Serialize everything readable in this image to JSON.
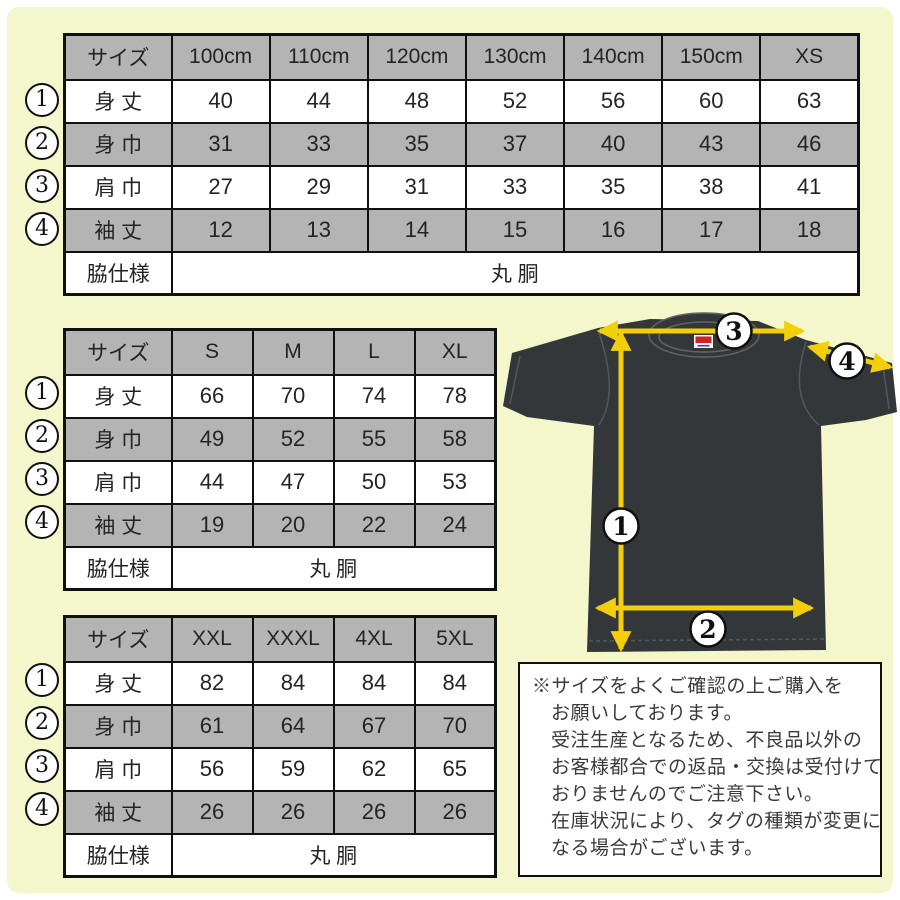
{
  "colors": {
    "background": "#f4f6cb",
    "table_shade": "#b4b4b4",
    "arrow_yellow": "#f2cf0a",
    "shirt_dark": "#33373a",
    "tag_red": "#cf2222"
  },
  "tables": [
    {
      "header": [
        "サイズ",
        "100cm",
        "110cm",
        "120cm",
        "130cm",
        "140cm",
        "150cm",
        "XS"
      ],
      "rows": [
        {
          "marker": "1",
          "label": "身 丈",
          "values": [
            "40",
            "44",
            "48",
            "52",
            "56",
            "60",
            "63"
          ]
        },
        {
          "marker": "2",
          "label": "身 巾",
          "values": [
            "31",
            "33",
            "35",
            "37",
            "40",
            "43",
            "46"
          ]
        },
        {
          "marker": "3",
          "label": "肩 巾",
          "values": [
            "27",
            "29",
            "31",
            "33",
            "35",
            "38",
            "41"
          ]
        },
        {
          "marker": "4",
          "label": "袖 丈",
          "values": [
            "12",
            "13",
            "14",
            "15",
            "16",
            "17",
            "18"
          ]
        }
      ],
      "footer": {
        "label": "脇仕様",
        "value": "丸 胴"
      }
    },
    {
      "header": [
        "サイズ",
        "S",
        "M",
        "L",
        "XL"
      ],
      "rows": [
        {
          "marker": "1",
          "label": "身 丈",
          "values": [
            "66",
            "70",
            "74",
            "78"
          ]
        },
        {
          "marker": "2",
          "label": "身 巾",
          "values": [
            "49",
            "52",
            "55",
            "58"
          ]
        },
        {
          "marker": "3",
          "label": "肩 巾",
          "values": [
            "44",
            "47",
            "50",
            "53"
          ]
        },
        {
          "marker": "4",
          "label": "袖 丈",
          "values": [
            "19",
            "20",
            "22",
            "24"
          ]
        }
      ],
      "footer": {
        "label": "脇仕様",
        "value": "丸 胴"
      }
    },
    {
      "header": [
        "サイズ",
        "XXL",
        "XXXL",
        "4XL",
        "5XL"
      ],
      "rows": [
        {
          "marker": "1",
          "label": "身 丈",
          "values": [
            "82",
            "84",
            "84",
            "84"
          ]
        },
        {
          "marker": "2",
          "label": "身 巾",
          "values": [
            "61",
            "64",
            "67",
            "70"
          ]
        },
        {
          "marker": "3",
          "label": "肩 巾",
          "values": [
            "56",
            "59",
            "62",
            "65"
          ]
        },
        {
          "marker": "4",
          "label": "袖 丈",
          "values": [
            "26",
            "26",
            "26",
            "26"
          ]
        }
      ],
      "footer": {
        "label": "脇仕様",
        "value": "丸 胴"
      }
    }
  ],
  "diagram": {
    "markers": [
      "1",
      "2",
      "3",
      "4"
    ]
  },
  "notice": {
    "lines": [
      "※サイズをよくご確認の上ご購入を",
      "お願いしております。",
      "受注生産となるため、不良品以外の",
      "お客様都合での返品・交換は受付けて",
      "おりませんのでご注意下さい。",
      "在庫状況により、タグの種類が変更に",
      "なる場合がございます。"
    ]
  }
}
